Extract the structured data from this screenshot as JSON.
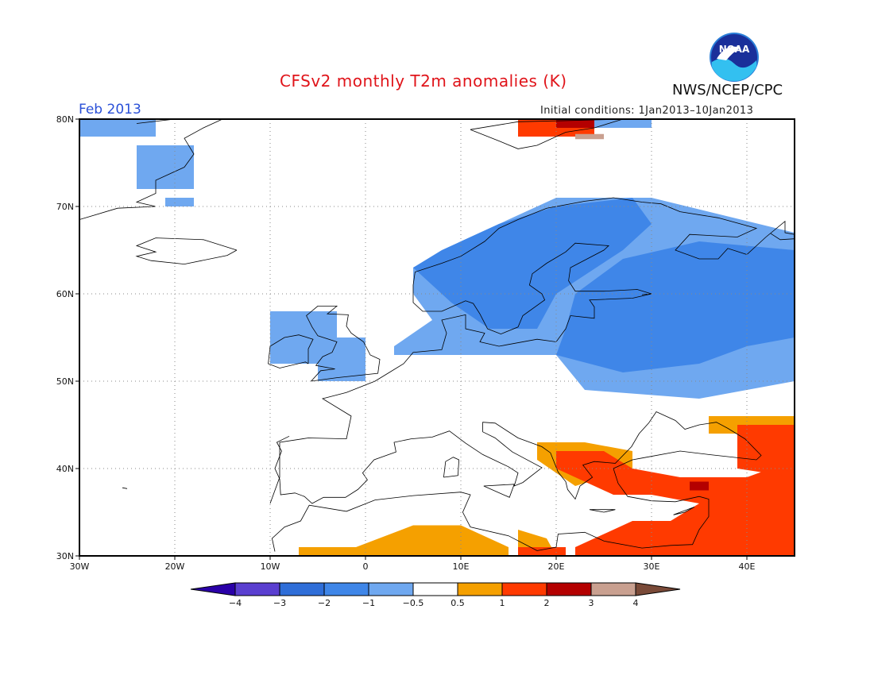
{
  "header": {
    "title": "CFSv2 monthly T2m anomalies (K)",
    "organization": "NWS/NCEP/CPC",
    "logo_text": "NOAA",
    "period": "Feb 2013",
    "initial_conditions": "Initial conditions: 1Jan2013–10Jan2013"
  },
  "map": {
    "lon_range": [
      -30,
      45
    ],
    "lat_range": [
      30,
      80
    ],
    "lon_ticks": [
      {
        "value": -30,
        "label": "30W"
      },
      {
        "value": -20,
        "label": "20W"
      },
      {
        "value": -10,
        "label": "10W"
      },
      {
        "value": 0,
        "label": "0"
      },
      {
        "value": 10,
        "label": "10E"
      },
      {
        "value": 20,
        "label": "20E"
      },
      {
        "value": 30,
        "label": "30E"
      },
      {
        "value": 40,
        "label": "40E"
      }
    ],
    "lat_ticks": [
      {
        "value": 30,
        "label": "30N"
      },
      {
        "value": 40,
        "label": "40N"
      },
      {
        "value": 50,
        "label": "50N"
      },
      {
        "value": 60,
        "label": "60N"
      },
      {
        "value": 70,
        "label": "70N"
      },
      {
        "value": 80,
        "label": "80N"
      }
    ],
    "grid": "dotted",
    "anomaly_regions": [
      {
        "level": "-1",
        "color": "#6fa8f0",
        "points": [
          [
            -30,
            80
          ],
          [
            -22,
            80
          ],
          [
            -22,
            78
          ],
          [
            -30,
            78
          ]
        ]
      },
      {
        "level": "-1",
        "color": "#6fa8f0",
        "points": [
          [
            -24,
            77
          ],
          [
            -18,
            77
          ],
          [
            -18,
            72
          ],
          [
            -24,
            72
          ]
        ]
      },
      {
        "level": "-1",
        "color": "#6fa8f0",
        "points": [
          [
            -21,
            71
          ],
          [
            -18,
            71
          ],
          [
            -18,
            70
          ],
          [
            -21,
            70
          ]
        ]
      },
      {
        "level": "-1",
        "color": "#6fa8f0",
        "points": [
          [
            -10,
            58
          ],
          [
            -3,
            58
          ],
          [
            -3,
            52
          ],
          [
            -10,
            52
          ]
        ]
      },
      {
        "level": "-1",
        "color": "#6fa8f0",
        "points": [
          [
            -5,
            55
          ],
          [
            0,
            55
          ],
          [
            0,
            50
          ],
          [
            -5,
            50
          ]
        ]
      },
      {
        "level": "-1",
        "color": "#6fa8f0",
        "points": [
          [
            3,
            53
          ],
          [
            20,
            53
          ],
          [
            23,
            49
          ],
          [
            35,
            48
          ],
          [
            45,
            50
          ],
          [
            45,
            67
          ],
          [
            30,
            71
          ],
          [
            20,
            71
          ],
          [
            10,
            66
          ],
          [
            5,
            63
          ],
          [
            5,
            60
          ],
          [
            7,
            57
          ],
          [
            3,
            54
          ]
        ]
      },
      {
        "level": "-2",
        "color": "#3f86e8",
        "points": [
          [
            5,
            63
          ],
          [
            9,
            59
          ],
          [
            13,
            56
          ],
          [
            18,
            56
          ],
          [
            20,
            60
          ],
          [
            27,
            65
          ],
          [
            30,
            68
          ],
          [
            28,
            71
          ],
          [
            20,
            70
          ],
          [
            14,
            68
          ],
          [
            8,
            65
          ]
        ]
      },
      {
        "level": "-2",
        "color": "#3f86e8",
        "points": [
          [
            20,
            53
          ],
          [
            27,
            51
          ],
          [
            35,
            52
          ],
          [
            40,
            54
          ],
          [
            45,
            55
          ],
          [
            45,
            65
          ],
          [
            35,
            66
          ],
          [
            27,
            64
          ],
          [
            22,
            60
          ],
          [
            21,
            56
          ]
        ]
      },
      {
        "level": "-1",
        "color": "#6fa8f0",
        "points": [
          [
            23,
            80
          ],
          [
            30,
            80
          ],
          [
            30,
            79
          ],
          [
            23,
            79
          ]
        ]
      },
      {
        "level": "0.5",
        "color": "#f5a000",
        "points": [
          [
            -7,
            31
          ],
          [
            -1,
            31
          ],
          [
            5,
            33.5
          ],
          [
            10,
            33.5
          ],
          [
            13,
            32
          ],
          [
            15,
            31
          ],
          [
            15,
            30
          ],
          [
            -7,
            30
          ]
        ]
      },
      {
        "level": "0.5",
        "color": "#f5a000",
        "points": [
          [
            18,
            43
          ],
          [
            23,
            43
          ],
          [
            28,
            42
          ],
          [
            28,
            40
          ],
          [
            22,
            38
          ],
          [
            18,
            41
          ]
        ]
      },
      {
        "level": "0.5",
        "color": "#f5a000",
        "points": [
          [
            36,
            46
          ],
          [
            45,
            46
          ],
          [
            45,
            44
          ],
          [
            36,
            44
          ]
        ]
      },
      {
        "level": "0.5",
        "color": "#f5a000",
        "points": [
          [
            16,
            33
          ],
          [
            19,
            32
          ],
          [
            20,
            30
          ],
          [
            16,
            30
          ]
        ]
      },
      {
        "level": "1",
        "color": "#ff3a00",
        "points": [
          [
            20,
            42
          ],
          [
            25,
            42
          ],
          [
            28,
            40
          ],
          [
            33,
            39
          ],
          [
            40,
            39
          ],
          [
            45,
            41
          ],
          [
            45,
            30
          ],
          [
            22,
            30
          ],
          [
            22,
            31
          ],
          [
            28,
            34
          ],
          [
            32,
            34
          ],
          [
            35,
            36
          ],
          [
            30,
            37
          ],
          [
            26,
            37
          ],
          [
            24,
            38
          ],
          [
            22,
            39
          ],
          [
            20,
            40
          ]
        ]
      },
      {
        "level": "1",
        "color": "#ff3a00",
        "points": [
          [
            39,
            45
          ],
          [
            45,
            45
          ],
          [
            45,
            39
          ],
          [
            39,
            40
          ]
        ]
      },
      {
        "level": "1",
        "color": "#ff3a00",
        "points": [
          [
            16,
            30
          ],
          [
            21,
            30
          ],
          [
            21,
            31
          ],
          [
            16,
            31
          ]
        ]
      },
      {
        "level": "1",
        "color": "#ff3a00",
        "points": [
          [
            16,
            80
          ],
          [
            24,
            80
          ],
          [
            24,
            78
          ],
          [
            16,
            78
          ]
        ]
      },
      {
        "level": "2",
        "color": "#b40000",
        "points": [
          [
            20,
            80
          ],
          [
            24,
            80
          ],
          [
            24,
            79
          ],
          [
            20,
            79
          ]
        ]
      },
      {
        "level": "2",
        "color": "#b40000",
        "points": [
          [
            34,
            38.5
          ],
          [
            36,
            38.5
          ],
          [
            36,
            37.5
          ],
          [
            34,
            37.5
          ]
        ]
      },
      {
        "level": "3",
        "color": "#c9a090",
        "points": [
          [
            22,
            78.3
          ],
          [
            25,
            78.3
          ],
          [
            25,
            77.7
          ],
          [
            22,
            77.7
          ]
        ]
      }
    ],
    "coastline_color": "#000000"
  },
  "colorbar": {
    "labels": [
      "−4",
      "−3",
      "−2",
      "−1",
      "−0.5",
      "0.5",
      "1",
      "2",
      "3",
      "4"
    ],
    "colors": [
      "#2a00a8",
      "#5a3fd0",
      "#2f6ed8",
      "#3f86e8",
      "#6fa8f0",
      "#ffffff",
      "#f5a000",
      "#ff3a00",
      "#b40000",
      "#c9a090",
      "#7a4a38"
    ]
  }
}
